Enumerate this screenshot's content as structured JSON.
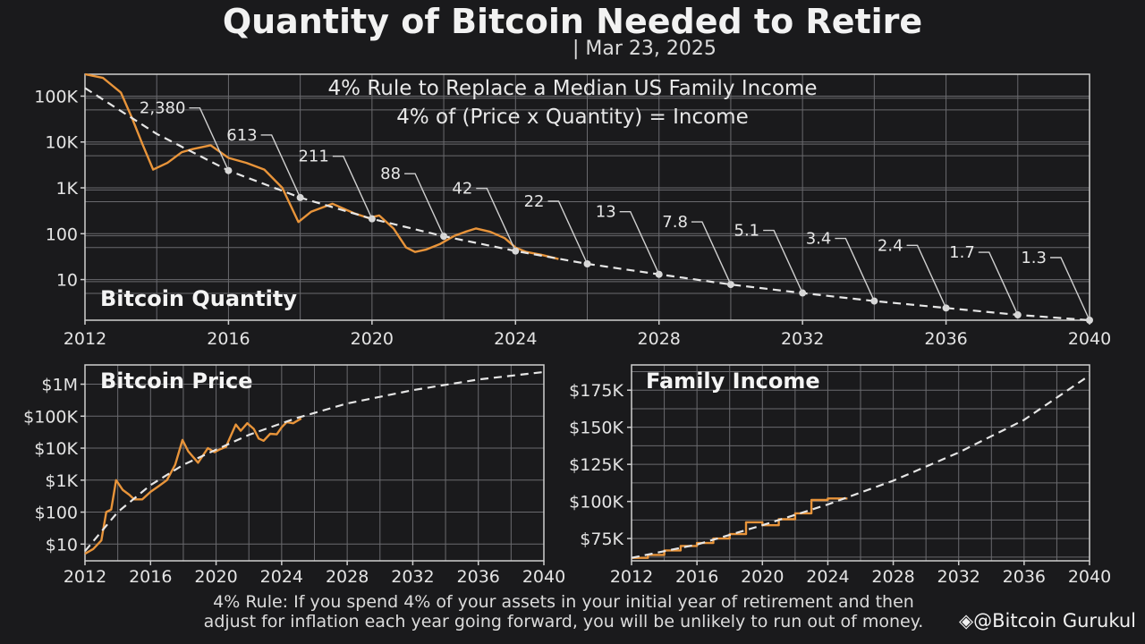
{
  "title": "Quantity of Bitcoin Needed to Retire",
  "date": "| Mar 23, 2025",
  "footer": {
    "line1": "4% Rule: If you spend 4% of your assets in your initial year of retirement and then",
    "line2": "adjust for inflation each year going forward, you will be unlikely to run out of money."
  },
  "watermark": "@Bitcoin Gurukul",
  "colors": {
    "actual": "#e8943a",
    "projection": "#e6e6e6",
    "grid": "#6a6a6e",
    "background": "#1a1a1c"
  },
  "chart_data": [
    {
      "type": "line",
      "title": "Bitcoin Quantity",
      "subtitle1": "4% Rule to Replace a Median US Family Income",
      "subtitle2": "4% of (Price x Quantity) = Income",
      "xlabel": "",
      "ylabel": "",
      "xlim": [
        2012,
        2040
      ],
      "ylim": [
        1.3,
        300000
      ],
      "yscale": "log",
      "xticks": [
        "2012",
        "2016",
        "2020",
        "2024",
        "2028",
        "2032",
        "2036",
        "2040"
      ],
      "yticks": [
        {
          "v": 10,
          "label": "10"
        },
        {
          "v": 100,
          "label": "100"
        },
        {
          "v": 1000,
          "label": "1K"
        },
        {
          "v": 10000,
          "label": "10K"
        },
        {
          "v": 100000,
          "label": "100K"
        }
      ],
      "series": [
        {
          "name": "Actual",
          "x": [
            2012.0,
            2012.5,
            2013.0,
            2013.3,
            2013.6,
            2013.9,
            2014.3,
            2014.7,
            2015.0,
            2015.5,
            2016.0,
            2016.5,
            2017.0,
            2017.5,
            2017.95,
            2018.3,
            2018.9,
            2019.5,
            2019.9,
            2020.2,
            2020.6,
            2020.95,
            2021.2,
            2021.5,
            2021.9,
            2022.3,
            2022.6,
            2022.9,
            2023.3,
            2023.7,
            2024.0,
            2024.3,
            2024.7,
            2025.2
          ],
          "y": [
            300000,
            250000,
            120000,
            35000,
            9000,
            2500,
            3500,
            6000,
            7000,
            8500,
            4500,
            3500,
            2500,
            1000,
            180,
            300,
            450,
            280,
            220,
            250,
            130,
            50,
            40,
            45,
            60,
            90,
            110,
            130,
            110,
            80,
            50,
            40,
            35,
            28
          ]
        },
        {
          "name": "Projection",
          "x": [
            2012,
            2014,
            2016,
            2018,
            2020,
            2022,
            2024,
            2026,
            2028,
            2030,
            2032,
            2034,
            2036,
            2038,
            2040
          ],
          "y": [
            150000,
            15000,
            2380,
            613,
            211,
            88,
            42,
            22,
            13,
            7.8,
            5.1,
            3.4,
            2.4,
            1.7,
            1.3
          ]
        }
      ],
      "annotations": [
        {
          "x": 2016,
          "value": 2380,
          "label": "2,380"
        },
        {
          "x": 2018,
          "value": 613,
          "label": "613"
        },
        {
          "x": 2020,
          "value": 211,
          "label": "211"
        },
        {
          "x": 2022,
          "value": 88,
          "label": "88"
        },
        {
          "x": 2024,
          "value": 42,
          "label": "42"
        },
        {
          "x": 2026,
          "value": 22,
          "label": "22"
        },
        {
          "x": 2028,
          "value": 13,
          "label": "13"
        },
        {
          "x": 2030,
          "value": 7.8,
          "label": "7.8"
        },
        {
          "x": 2032,
          "value": 5.1,
          "label": "5.1"
        },
        {
          "x": 2034,
          "value": 3.4,
          "label": "3.4"
        },
        {
          "x": 2036,
          "value": 2.4,
          "label": "2.4"
        },
        {
          "x": 2038,
          "value": 1.7,
          "label": "1.7"
        },
        {
          "x": 2040,
          "value": 1.3,
          "label": "1.3"
        }
      ]
    },
    {
      "type": "line",
      "title": "Bitcoin Price",
      "xlabel": "",
      "ylabel": "",
      "xlim": [
        2012,
        2040
      ],
      "ylim": [
        3,
        4000000
      ],
      "yscale": "log",
      "xticks": [
        "2012",
        "2016",
        "2020",
        "2024",
        "2028",
        "2032",
        "2036",
        "2040"
      ],
      "yticks": [
        {
          "v": 10,
          "label": "$10"
        },
        {
          "v": 100,
          "label": "$100"
        },
        {
          "v": 1000,
          "label": "$1K"
        },
        {
          "v": 10000,
          "label": "$10K"
        },
        {
          "v": 100000,
          "label": "$100K"
        },
        {
          "v": 1000000,
          "label": "$1M"
        }
      ],
      "series": [
        {
          "name": "Actual",
          "x": [
            2012.0,
            2012.5,
            2013.0,
            2013.3,
            2013.6,
            2013.9,
            2014.3,
            2014.7,
            2015.0,
            2015.5,
            2016.0,
            2016.5,
            2017.0,
            2017.5,
            2017.95,
            2018.3,
            2018.9,
            2019.5,
            2019.9,
            2020.2,
            2020.6,
            2020.95,
            2021.2,
            2021.5,
            2021.9,
            2022.3,
            2022.6,
            2022.9,
            2023.3,
            2023.7,
            2024.0,
            2024.3,
            2024.7,
            2025.2
          ],
          "y": [
            5,
            7,
            13,
            100,
            120,
            1000,
            500,
            350,
            250,
            250,
            430,
            650,
            1000,
            3000,
            18000,
            8000,
            3500,
            10000,
            7500,
            9000,
            11000,
            28000,
            55000,
            35000,
            60000,
            40000,
            20000,
            17000,
            28000,
            27000,
            45000,
            65000,
            60000,
            85000
          ]
        },
        {
          "name": "Projection",
          "x": [
            2012,
            2014,
            2016,
            2018,
            2020,
            2022,
            2024,
            2025,
            2028,
            2032,
            2036,
            2040
          ],
          "y": [
            6,
            100,
            700,
            3000,
            9000,
            26000,
            60000,
            90000,
            250000,
            650000,
            1400000,
            2400000
          ]
        }
      ]
    },
    {
      "type": "line",
      "title": "Family Income",
      "xlabel": "",
      "ylabel": "",
      "xlim": [
        2012,
        2040
      ],
      "ylim": [
        60000,
        192000
      ],
      "xticks": [
        "2012",
        "2016",
        "2020",
        "2024",
        "2028",
        "2032",
        "2036",
        "2040"
      ],
      "yticks": [
        {
          "v": 75000,
          "label": "$75K"
        },
        {
          "v": 100000,
          "label": "$100K"
        },
        {
          "v": 125000,
          "label": "$125K"
        },
        {
          "v": 150000,
          "label": "$150K"
        },
        {
          "v": 175000,
          "label": "$175K"
        }
      ],
      "series": [
        {
          "name": "Actual",
          "x": [
            2012,
            2013,
            2013,
            2014,
            2014,
            2015,
            2015,
            2016,
            2016,
            2017,
            2017,
            2018,
            2018,
            2019,
            2019,
            2020,
            2020,
            2021,
            2021,
            2022,
            2022,
            2023,
            2023,
            2024,
            2024,
            2025.2
          ],
          "y": [
            62000,
            62000,
            64000,
            64000,
            67000,
            67000,
            70000,
            70000,
            72000,
            72000,
            75000,
            75000,
            78000,
            78000,
            86000,
            86000,
            84000,
            84000,
            88000,
            88000,
            92000,
            92000,
            101000,
            101000,
            102000,
            102000
          ]
        },
        {
          "name": "Projection",
          "x": [
            2012,
            2016,
            2020,
            2024,
            2028,
            2032,
            2036,
            2040
          ],
          "y": [
            62000,
            71000,
            84000,
            98000,
            114000,
            133000,
            155000,
            185000
          ]
        }
      ]
    }
  ]
}
